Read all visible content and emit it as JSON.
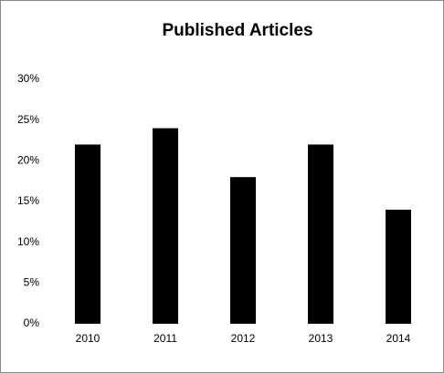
{
  "chart_data": {
    "type": "bar",
    "title": "Published Articles",
    "categories": [
      "2010",
      "2011",
      "2012",
      "2013",
      "2014"
    ],
    "values": [
      22,
      24,
      18,
      22,
      14
    ],
    "color": "#000000",
    "ylim": [
      0,
      30
    ],
    "yticks": [
      {
        "value": 0,
        "label": "0%"
      },
      {
        "value": 5,
        "label": "5%"
      },
      {
        "value": 10,
        "label": "10%"
      },
      {
        "value": 15,
        "label": "15%"
      },
      {
        "value": 20,
        "label": "20%"
      },
      {
        "value": 25,
        "label": "25%"
      },
      {
        "value": 30,
        "label": "30%"
      }
    ],
    "grid": false
  }
}
